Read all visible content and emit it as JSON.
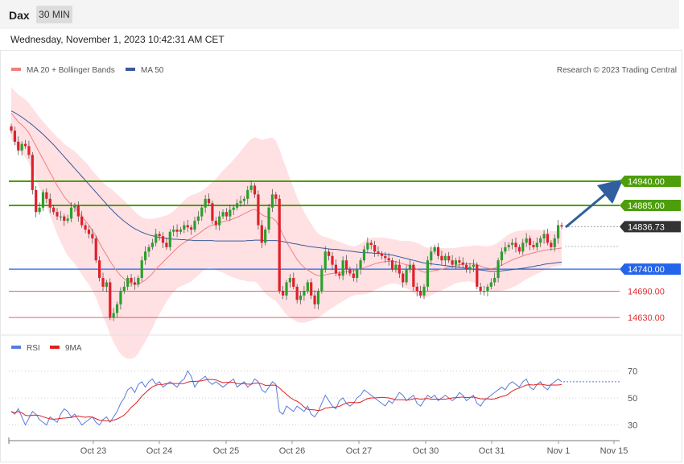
{
  "header": {
    "instrument": "Dax",
    "timeframe": "30 MIN",
    "datetime": "Wednesday, November 1, 2023 10:42:31 AM CET"
  },
  "colors": {
    "bull": "#2aa02a",
    "bear": "#e0202a",
    "band": "#ffe0e3",
    "ma20": "#f08080",
    "ma50": "#3a5a9a",
    "resistance": "#4d9e0a",
    "support": "#2563eb",
    "target": "#e03030",
    "arrow": "#2f5f9e",
    "last": "#333333",
    "rsi": "#5a7be0",
    "rsi_ma": "#e02020"
  },
  "chart_data": [
    {
      "type": "candlestick",
      "legend": [
        {
          "label": "MA 20 + Bollinger Bands",
          "color": "#f08080"
        },
        {
          "label": "MA 50",
          "color": "#3a5a9a"
        }
      ],
      "credit": "Research © 2023 Trading Central",
      "x_labels": [
        "Oct 23",
        "Oct 24",
        "Oct 25",
        "Oct 26",
        "Oct 27",
        "Oct 30",
        "Oct 31",
        "Nov 1",
        "Nov 15"
      ],
      "levels": [
        {
          "value": 14940,
          "label": "14940.00",
          "kind": "resistance"
        },
        {
          "value": 14885,
          "label": "14885.00",
          "kind": "resistance"
        },
        {
          "value": 14836.73,
          "label": "14836.73",
          "kind": "last"
        },
        {
          "value": 14740,
          "label": "14740.00",
          "kind": "support"
        },
        {
          "value": 14690,
          "label": "14690.00",
          "kind": "target"
        },
        {
          "value": 14630,
          "label": "14630.00",
          "kind": "target"
        }
      ],
      "closes": [
        15055,
        15030,
        15010,
        15025,
        15020,
        15000,
        14920,
        14870,
        14880,
        14915,
        14900,
        14880,
        14870,
        14860,
        14860,
        14850,
        14855,
        14880,
        14885,
        14860,
        14840,
        14830,
        14820,
        14810,
        14760,
        14720,
        14700,
        14710,
        14630,
        14640,
        14660,
        14690,
        14700,
        14720,
        14710,
        14705,
        14720,
        14760,
        14780,
        14790,
        14800,
        14820,
        14815,
        14800,
        14790,
        14825,
        14830,
        14825,
        14830,
        14840,
        14835,
        14830,
        14850,
        14860,
        14880,
        14900,
        14890,
        14850,
        14840,
        14860,
        14870,
        14860,
        14875,
        14880,
        14890,
        14895,
        14900,
        14920,
        14930,
        14910,
        14840,
        14800,
        14830,
        14880,
        14910,
        14900,
        14690,
        14680,
        14710,
        14720,
        14700,
        14670,
        14680,
        14690,
        14710,
        14680,
        14660,
        14690,
        14740,
        14780,
        14770,
        14750,
        14730,
        14725,
        14760,
        14740,
        14730,
        14720,
        14740,
        14760,
        14785,
        14800,
        14795,
        14780,
        14775,
        14770,
        14765,
        14760,
        14740,
        14750,
        14730,
        14710,
        14740,
        14750,
        14700,
        14690,
        14680,
        14700,
        14760,
        14780,
        14790,
        14770,
        14760,
        14770,
        14760,
        14750,
        14760,
        14755,
        14750,
        14740,
        14745,
        14750,
        14700,
        14690,
        14690,
        14700,
        14710,
        14720,
        14760,
        14780,
        14790,
        14795,
        14800,
        14790,
        14780,
        14800,
        14810,
        14795,
        14790,
        14800,
        14810,
        14820,
        14800,
        14790,
        14810,
        14840,
        14836.73
      ],
      "ma20": [
        15095,
        15085,
        15075,
        15068,
        15060,
        15050,
        15035,
        15020,
        15005,
        14990,
        14975,
        14960,
        14945,
        14930,
        14918,
        14905,
        14895,
        14887,
        14880,
        14870,
        14860,
        14850,
        14840,
        14828,
        14815,
        14800,
        14785,
        14772,
        14758,
        14746,
        14735,
        14725,
        14718,
        14712,
        14708,
        14705,
        14706,
        14710,
        14715,
        14722,
        14730,
        14740,
        14748,
        14756,
        14764,
        14772,
        14780,
        14788,
        14795,
        14800,
        14806,
        14810,
        14815,
        14820,
        14826,
        14832,
        14837,
        14840,
        14842,
        14845,
        14848,
        14850,
        14852,
        14855,
        14858,
        14862,
        14866,
        14870,
        14874,
        14876,
        14872,
        14864,
        14860,
        14858,
        14856,
        14850,
        14835,
        14818,
        14802,
        14788,
        14775,
        14762,
        14752,
        14744,
        14738,
        14733,
        14728,
        14725,
        14725,
        14727,
        14729,
        14730,
        14731,
        14732,
        14733,
        14734,
        14735,
        14736,
        14738,
        14740,
        14743,
        14746,
        14749,
        14752,
        14754,
        14756,
        14757,
        14758,
        14758,
        14757,
        14755,
        14752,
        14750,
        14748,
        14744,
        14740,
        14736,
        14733,
        14733,
        14735,
        14737,
        14738,
        14740,
        14742,
        14744,
        14746,
        14748,
        14750,
        14751,
        14752,
        14752,
        14752,
        14750,
        14747,
        14744,
        14742,
        14741,
        14742,
        14745,
        14749,
        14753,
        14757,
        14761,
        14764,
        14767,
        14770,
        14773,
        14775,
        14777,
        14779,
        14781,
        14783,
        14784,
        14785,
        14786,
        14787,
        14788
      ],
      "ma50": [
        15100,
        15096,
        15091,
        15086,
        15080,
        15074,
        15068,
        15061,
        15054,
        15047,
        15039,
        15031,
        15023,
        15014,
        15005,
        14996,
        14987,
        14978,
        14969,
        14960,
        14951,
        14942,
        14933,
        14924,
        14915,
        14906,
        14897,
        14888,
        14879,
        14871,
        14863,
        14856,
        14849,
        14843,
        14837,
        14832,
        14828,
        14824,
        14821,
        14818,
        14816,
        14814,
        14812,
        14811,
        14810,
        14809,
        14808,
        14808,
        14807,
        14807,
        14806,
        14806,
        14805,
        14805,
        14805,
        14805,
        14805,
        14805,
        14804,
        14804,
        14804,
        14804,
        14804,
        14804,
        14804,
        14804,
        14804,
        14805,
        14805,
        14806,
        14806,
        14806,
        14805,
        14805,
        14805,
        14805,
        14804,
        14803,
        14801,
        14800,
        14798,
        14797,
        14795,
        14794,
        14792,
        14791,
        14790,
        14789,
        14788,
        14787,
        14786,
        14785,
        14785,
        14784,
        14783,
        14782,
        14781,
        14780,
        14779,
        14778,
        14778,
        14777,
        14777,
        14776,
        14776,
        14775,
        14774,
        14773,
        14772,
        14770,
        14768,
        14766,
        14764,
        14762,
        14760,
        14758,
        14756,
        14754,
        14753,
        14752,
        14751,
        14750,
        14749,
        14748,
        14747,
        14746,
        14745,
        14744,
        14743,
        14742,
        14741,
        14740,
        14739,
        14738,
        14737,
        14736,
        14735,
        14735,
        14735,
        14736,
        14737,
        14738,
        14739,
        14740,
        14741,
        14742,
        14743,
        14745,
        14746,
        14748,
        14749,
        14751,
        14752,
        14753,
        14754,
        14755,
        14756
      ],
      "bb_width": [
        60,
        60,
        62,
        64,
        66,
        68,
        72,
        76,
        80,
        86,
        92,
        98,
        104,
        110,
        116,
        120,
        124,
        126,
        128,
        130,
        132,
        134,
        135,
        136,
        140,
        146,
        152,
        158,
        166,
        172,
        176,
        178,
        178,
        176,
        172,
        166,
        158,
        148,
        140,
        132,
        124,
        116,
        110,
        104,
        98,
        94,
        92,
        92,
        94,
        96,
        98,
        98,
        96,
        94,
        92,
        92,
        94,
        98,
        104,
        110,
        116,
        122,
        128,
        134,
        140,
        146,
        152,
        158,
        162,
        164,
        166,
        170,
        176,
        180,
        184,
        182,
        178,
        172,
        166,
        158,
        150,
        142,
        134,
        126,
        118,
        110,
        102,
        96,
        90,
        86,
        82,
        78,
        74,
        70,
        66,
        62,
        58,
        56,
        56,
        58,
        60,
        62,
        62,
        60,
        58,
        56,
        54,
        52,
        50,
        50,
        50,
        52,
        54,
        56,
        58,
        60,
        60,
        58,
        56,
        54,
        52,
        50,
        48,
        46,
        44,
        42,
        40,
        40,
        40,
        40,
        40,
        42,
        44,
        46,
        48,
        50,
        52,
        54,
        56,
        58,
        60,
        62,
        62,
        62,
        60,
        58,
        56,
        54,
        52,
        50,
        48,
        46,
        44,
        42,
        40,
        40,
        40
      ]
    },
    {
      "type": "line",
      "legend": [
        {
          "label": "RSI",
          "color": "#5a7be0"
        },
        {
          "label": "9MA",
          "color": "#e02020"
        }
      ],
      "y_ticks": [
        "70",
        "50",
        "30"
      ],
      "ylim": [
        20,
        80
      ],
      "rsi": [
        40,
        38,
        42,
        36,
        30,
        35,
        40,
        38,
        34,
        32,
        30,
        36,
        34,
        32,
        38,
        42,
        40,
        36,
        38,
        34,
        30,
        32,
        34,
        36,
        32,
        30,
        34,
        36,
        32,
        36,
        40,
        46,
        50,
        56,
        58,
        54,
        60,
        62,
        58,
        62,
        64,
        60,
        62,
        58,
        60,
        62,
        60,
        58,
        62,
        64,
        70,
        66,
        58,
        62,
        64,
        66,
        62,
        60,
        62,
        60,
        58,
        60,
        62,
        64,
        58,
        60,
        62,
        58,
        60,
        64,
        62,
        56,
        54,
        58,
        62,
        60,
        40,
        38,
        44,
        42,
        40,
        44,
        42,
        40,
        44,
        38,
        36,
        40,
        46,
        52,
        48,
        44,
        42,
        48,
        50,
        46,
        44,
        46,
        50,
        52,
        56,
        54,
        52,
        50,
        48,
        46,
        44,
        48,
        46,
        50,
        54,
        52,
        48,
        50,
        52,
        46,
        44,
        48,
        52,
        50,
        52,
        48,
        50,
        52,
        50,
        48,
        50,
        54,
        52,
        48,
        50,
        52,
        46,
        44,
        48,
        50,
        52,
        54,
        56,
        58,
        56,
        60,
        62,
        60,
        58,
        62,
        64,
        58,
        56,
        60,
        62,
        58,
        56,
        60,
        62,
        64,
        62
      ]
    }
  ]
}
